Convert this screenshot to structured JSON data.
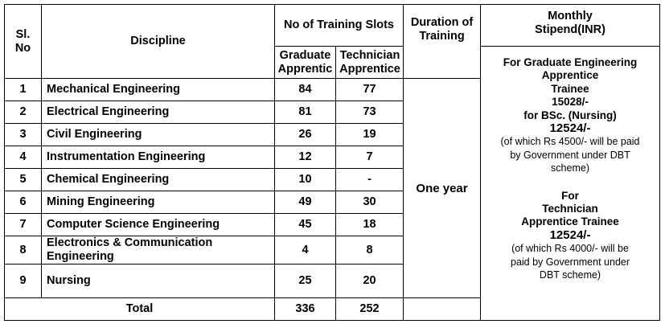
{
  "table": {
    "headers": {
      "sl_no": "Sl. No",
      "discipline": "Discipline",
      "slots": "No of Training Slots",
      "graduate": "Graduate Apprentic",
      "technician": "Technician Apprentice",
      "duration": "Duration of Training",
      "stipend": "Monthly Stipend(INR)"
    },
    "rows": [
      {
        "sl": "1",
        "discipline": "Mechanical Engineering",
        "graduate": "84",
        "technician": "77"
      },
      {
        "sl": "2",
        "discipline": "Electrical  Engineering",
        "graduate": "81",
        "technician": "73"
      },
      {
        "sl": "3",
        "discipline": "Civil Engineering",
        "graduate": "26",
        "technician": "19"
      },
      {
        "sl": "4",
        "discipline": "Instrumentation Engineering",
        "graduate": "12",
        "technician": "7"
      },
      {
        "sl": "5",
        "discipline": "Chemical Engineering",
        "graduate": "10",
        "technician": "-"
      },
      {
        "sl": "6",
        "discipline": "Mining Engineering",
        "graduate": "49",
        "technician": "30"
      },
      {
        "sl": "7",
        "discipline": "Computer Science  Engineering",
        "graduate": "45",
        "technician": "18"
      },
      {
        "sl": "8",
        "discipline": "Electronics & Communication Engineering",
        "graduate": "4",
        "technician": "8"
      },
      {
        "sl": "9",
        "discipline": "Nursing",
        "graduate": "25",
        "technician": "20"
      }
    ],
    "total": {
      "label": "Total",
      "graduate": "336",
      "technician": "252"
    },
    "duration_value": "One year",
    "stipend": {
      "grad_line1": "For Graduate Engineering",
      "grad_line2": "Apprentice",
      "grad_line3": "Trainee",
      "grad_amount": "15028/-",
      "nursing_label": "for BSc. (Nursing)",
      "nursing_amount": "12524/-",
      "grad_note1": "(of which Rs 4500/- will be paid",
      "grad_note2": "by Government under DBT",
      "grad_note3": "scheme)",
      "tech_line1": "For",
      "tech_line2": "Technician",
      "tech_line3": "Apprentice Trainee",
      "tech_amount": "12524/-",
      "tech_note1": "(of which Rs 4000/- will be",
      "tech_note2": "paid by Government under",
      "tech_note3": "DBT scheme)"
    }
  }
}
